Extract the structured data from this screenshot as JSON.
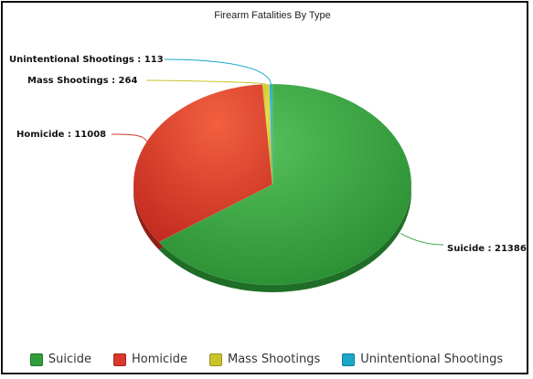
{
  "chart_data": {
    "type": "pie",
    "title": "Firearm Fatalities By Type",
    "slices": [
      {
        "label": "Suicide",
        "value": 21386,
        "color": "#2f9e3a",
        "data_label": "Suicide : 21386"
      },
      {
        "label": "Homicide",
        "value": 11008,
        "color": "#d9382a",
        "data_label": "Homicide : 11008"
      },
      {
        "label": "Mass Shootings",
        "value": 264,
        "color": "#c9c42c",
        "data_label": "Mass Shootings : 264"
      },
      {
        "label": "Unintentional Shootings",
        "value": 113,
        "color": "#1aa7c9",
        "data_label": "Unintentional Shootings : 113"
      }
    ],
    "legend_position": "bottom"
  }
}
